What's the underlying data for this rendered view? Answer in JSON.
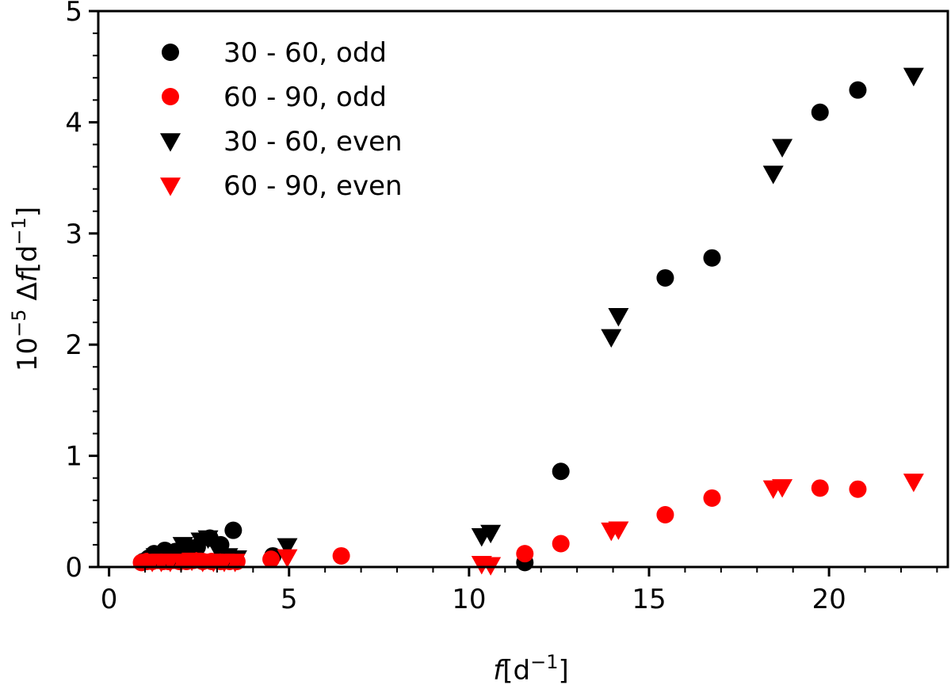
{
  "chart_data": {
    "type": "scatter",
    "title": "",
    "xlabel": {
      "italic": "f",
      "unit": "[d",
      "sup": "−1",
      "close": "]"
    },
    "ylabel": {
      "prefix": "10",
      "prefix_sup": "−5",
      "delta": " Δ",
      "italic": "f",
      "unit": "[d",
      "sup": "−1",
      "close": "]"
    },
    "xlim": [
      -0.3,
      23.3
    ],
    "ylim": [
      0,
      5
    ],
    "xticks": [
      0,
      5,
      10,
      15,
      20
    ],
    "xtick_labels": [
      "0",
      "5",
      "10",
      "15",
      "20"
    ],
    "yticks": [
      0,
      1,
      2,
      3,
      4,
      5
    ],
    "ytick_labels": [
      "0",
      "1",
      "2",
      "3",
      "4",
      "5"
    ],
    "legend_position": "top-left",
    "series": [
      {
        "name": "30 - 60, odd",
        "color": "#000000",
        "marker": "circle",
        "points": [
          [
            0.95,
            0.05
          ],
          [
            1.1,
            0.08
          ],
          [
            1.25,
            0.12
          ],
          [
            1.4,
            0.1
          ],
          [
            1.55,
            0.15
          ],
          [
            1.7,
            0.12
          ],
          [
            1.85,
            0.14
          ],
          [
            2.0,
            0.08
          ],
          [
            2.2,
            0.18
          ],
          [
            2.45,
            0.18
          ],
          [
            2.8,
            0.26
          ],
          [
            3.1,
            0.2
          ],
          [
            3.45,
            0.33
          ],
          [
            4.55,
            0.1
          ],
          [
            11.55,
            0.04
          ],
          [
            12.55,
            0.86
          ],
          [
            15.45,
            2.6
          ],
          [
            16.75,
            2.78
          ],
          [
            19.75,
            4.09
          ],
          [
            20.8,
            4.29
          ]
        ]
      },
      {
        "name": "60 - 90, odd",
        "color": "#ff0000",
        "marker": "circle",
        "points": [
          [
            0.9,
            0.04
          ],
          [
            1.05,
            0.05
          ],
          [
            1.2,
            0.05
          ],
          [
            1.35,
            0.06
          ],
          [
            1.5,
            0.05
          ],
          [
            1.65,
            0.05
          ],
          [
            1.8,
            0.06
          ],
          [
            1.95,
            0.05
          ],
          [
            2.15,
            0.05
          ],
          [
            2.35,
            0.06
          ],
          [
            2.6,
            0.05
          ],
          [
            2.85,
            0.05
          ],
          [
            3.1,
            0.05
          ],
          [
            3.35,
            0.05
          ],
          [
            3.55,
            0.05
          ],
          [
            4.5,
            0.07
          ],
          [
            6.45,
            0.1
          ],
          [
            11.55,
            0.12
          ],
          [
            12.55,
            0.21
          ],
          [
            15.45,
            0.47
          ],
          [
            16.75,
            0.62
          ],
          [
            19.75,
            0.71
          ],
          [
            20.8,
            0.7
          ]
        ]
      },
      {
        "name": "30 - 60, even",
        "color": "#000000",
        "marker": "triangle-down",
        "points": [
          [
            1.3,
            0.1
          ],
          [
            1.6,
            0.1
          ],
          [
            1.8,
            0.1
          ],
          [
            2.05,
            0.2
          ],
          [
            2.3,
            0.17
          ],
          [
            2.55,
            0.24
          ],
          [
            2.75,
            0.26
          ],
          [
            3.0,
            0.17
          ],
          [
            3.3,
            0.1
          ],
          [
            3.55,
            0.08
          ],
          [
            4.95,
            0.19
          ],
          [
            10.35,
            0.28
          ],
          [
            10.6,
            0.31
          ],
          [
            13.95,
            2.07
          ],
          [
            14.15,
            2.26
          ],
          [
            18.45,
            3.54
          ],
          [
            18.7,
            3.78
          ],
          [
            22.35,
            4.42
          ]
        ]
      },
      {
        "name": "60 - 90, even",
        "color": "#ff0000",
        "marker": "triangle-down",
        "points": [
          [
            1.2,
            0.05
          ],
          [
            1.45,
            0.05
          ],
          [
            1.7,
            0.05
          ],
          [
            2.0,
            0.05
          ],
          [
            2.3,
            0.06
          ],
          [
            2.6,
            0.05
          ],
          [
            2.9,
            0.05
          ],
          [
            3.2,
            0.05
          ],
          [
            3.5,
            0.05
          ],
          [
            4.95,
            0.09
          ],
          [
            10.35,
            0.03
          ],
          [
            10.6,
            0.02
          ],
          [
            13.95,
            0.33
          ],
          [
            14.15,
            0.34
          ],
          [
            18.45,
            0.71
          ],
          [
            18.7,
            0.72
          ],
          [
            22.35,
            0.77
          ]
        ]
      }
    ]
  }
}
